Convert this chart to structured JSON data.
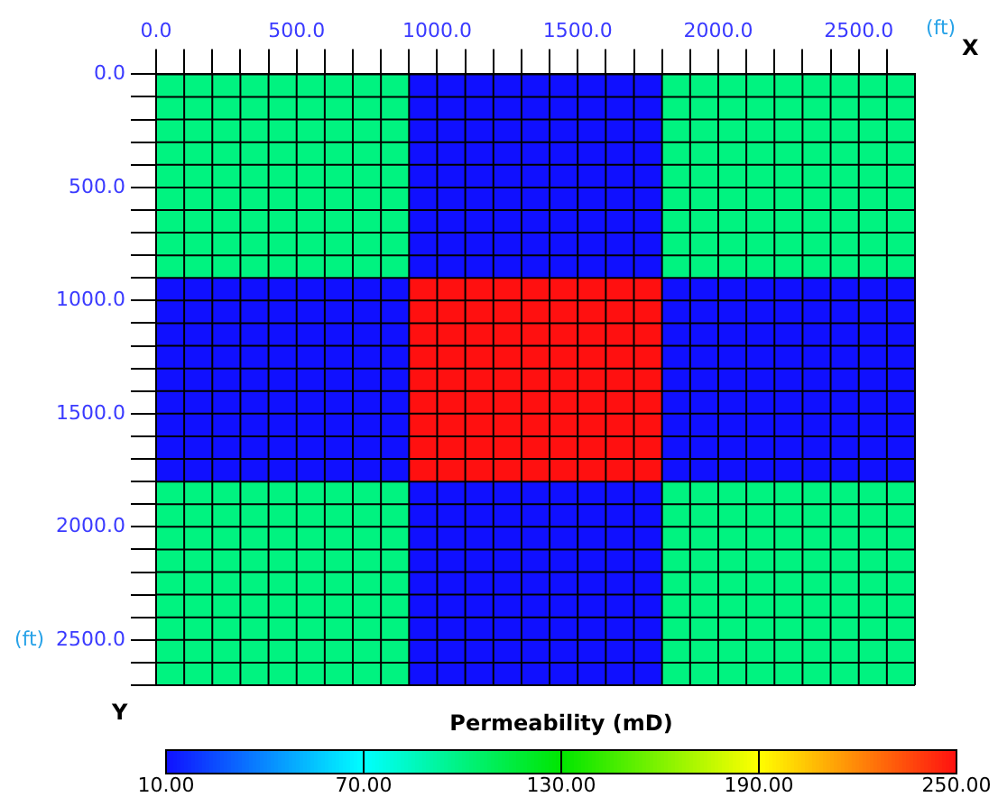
{
  "chart_data": {
    "type": "heatmap",
    "grid": true,
    "xlabel": "(ft)",
    "clabel": "Permeability (mD)",
    "annotations": [
      "X",
      "Y",
      "(ft)"
    ],
    "x": [
      50,
      150,
      250,
      350,
      450,
      550,
      650,
      750,
      850,
      950,
      1050,
      1150,
      1250,
      1350,
      1450,
      1550,
      1650,
      1750,
      1850,
      1950,
      2050,
      2150,
      2250,
      2350,
      2450,
      2550,
      2650
    ],
    "y": [
      50,
      150,
      250,
      350,
      450,
      550,
      650,
      750,
      850,
      950,
      1050,
      1150,
      1250,
      1350,
      1450,
      1550,
      1650,
      1750,
      1850,
      1950,
      2050,
      2150,
      2250,
      2350,
      2450,
      2550,
      2650
    ],
    "xlim": [
      0,
      2700
    ],
    "ylim": [
      2700,
      0
    ],
    "xticks": [
      {
        "value": 0,
        "label": "0.0"
      },
      {
        "value": 100,
        "label": null
      },
      {
        "value": 200,
        "label": null
      },
      {
        "value": 300,
        "label": null
      },
      {
        "value": 400,
        "label": null
      },
      {
        "value": 500,
        "label": "500.0"
      },
      {
        "value": 600,
        "label": null
      },
      {
        "value": 700,
        "label": null
      },
      {
        "value": 800,
        "label": null
      },
      {
        "value": 900,
        "label": null
      },
      {
        "value": 1000,
        "label": "1000.0"
      },
      {
        "value": 1100,
        "label": null
      },
      {
        "value": 1200,
        "label": null
      },
      {
        "value": 1300,
        "label": null
      },
      {
        "value": 1400,
        "label": null
      },
      {
        "value": 1500,
        "label": "1500.0"
      },
      {
        "value": 1600,
        "label": null
      },
      {
        "value": 1700,
        "label": null
      },
      {
        "value": 1800,
        "label": null
      },
      {
        "value": 1900,
        "label": null
      },
      {
        "value": 2000,
        "label": "2000.0"
      },
      {
        "value": 2100,
        "label": null
      },
      {
        "value": 2200,
        "label": null
      },
      {
        "value": 2300,
        "label": null
      },
      {
        "value": 2400,
        "label": null
      },
      {
        "value": 2500,
        "label": "2500.0"
      },
      {
        "value": 2600,
        "label": null
      }
    ],
    "yticks": [
      {
        "value": 0,
        "label": "0.0"
      },
      {
        "value": 100,
        "label": null
      },
      {
        "value": 200,
        "label": null
      },
      {
        "value": 300,
        "label": null
      },
      {
        "value": 400,
        "label": null
      },
      {
        "value": 500,
        "label": "500.0"
      },
      {
        "value": 600,
        "label": null
      },
      {
        "value": 700,
        "label": null
      },
      {
        "value": 800,
        "label": null
      },
      {
        "value": 900,
        "label": null
      },
      {
        "value": 1000,
        "label": "1000.0"
      },
      {
        "value": 1100,
        "label": null
      },
      {
        "value": 1200,
        "label": null
      },
      {
        "value": 1300,
        "label": null
      },
      {
        "value": 1400,
        "label": null
      },
      {
        "value": 1500,
        "label": "1500.0"
      },
      {
        "value": 1600,
        "label": null
      },
      {
        "value": 1700,
        "label": null
      },
      {
        "value": 1800,
        "label": null
      },
      {
        "value": 1900,
        "label": null
      },
      {
        "value": 2000,
        "label": "2000.0"
      },
      {
        "value": 2100,
        "label": null
      },
      {
        "value": 2200,
        "label": null
      },
      {
        "value": 2300,
        "label": null
      },
      {
        "value": 2400,
        "label": null
      },
      {
        "value": 2500,
        "label": "2500.0"
      },
      {
        "value": 2600,
        "label": null
      },
      {
        "value": 2700,
        "label": null
      }
    ],
    "clim": [
      10,
      250
    ],
    "cticks": [
      {
        "value": 10,
        "label": "10.00"
      },
      {
        "value": 70,
        "label": "70.00"
      },
      {
        "value": 130,
        "label": "130.00"
      },
      {
        "value": 190,
        "label": "190.00"
      },
      {
        "value": 250,
        "label": "250.00"
      }
    ],
    "cells": [
      [
        100,
        100,
        100,
        100,
        100,
        100,
        100,
        100,
        100,
        10,
        10,
        10,
        10,
        10,
        10,
        10,
        10,
        10,
        100,
        100,
        100,
        100,
        100,
        100,
        100,
        100,
        100
      ],
      [
        100,
        100,
        100,
        100,
        100,
        100,
        100,
        100,
        100,
        10,
        10,
        10,
        10,
        10,
        10,
        10,
        10,
        10,
        100,
        100,
        100,
        100,
        100,
        100,
        100,
        100,
        100
      ],
      [
        100,
        100,
        100,
        100,
        100,
        100,
        100,
        100,
        100,
        10,
        10,
        10,
        10,
        10,
        10,
        10,
        10,
        10,
        100,
        100,
        100,
        100,
        100,
        100,
        100,
        100,
        100
      ],
      [
        100,
        100,
        100,
        100,
        100,
        100,
        100,
        100,
        100,
        10,
        10,
        10,
        10,
        10,
        10,
        10,
        10,
        10,
        100,
        100,
        100,
        100,
        100,
        100,
        100,
        100,
        100
      ],
      [
        100,
        100,
        100,
        100,
        100,
        100,
        100,
        100,
        100,
        10,
        10,
        10,
        10,
        10,
        10,
        10,
        10,
        10,
        100,
        100,
        100,
        100,
        100,
        100,
        100,
        100,
        100
      ],
      [
        100,
        100,
        100,
        100,
        100,
        100,
        100,
        100,
        100,
        10,
        10,
        10,
        10,
        10,
        10,
        10,
        10,
        10,
        100,
        100,
        100,
        100,
        100,
        100,
        100,
        100,
        100
      ],
      [
        100,
        100,
        100,
        100,
        100,
        100,
        100,
        100,
        100,
        10,
        10,
        10,
        10,
        10,
        10,
        10,
        10,
        10,
        100,
        100,
        100,
        100,
        100,
        100,
        100,
        100,
        100
      ],
      [
        100,
        100,
        100,
        100,
        100,
        100,
        100,
        100,
        100,
        10,
        10,
        10,
        10,
        10,
        10,
        10,
        10,
        10,
        100,
        100,
        100,
        100,
        100,
        100,
        100,
        100,
        100
      ],
      [
        100,
        100,
        100,
        100,
        100,
        100,
        100,
        100,
        100,
        10,
        10,
        10,
        10,
        10,
        10,
        10,
        10,
        10,
        100,
        100,
        100,
        100,
        100,
        100,
        100,
        100,
        100
      ],
      [
        10,
        10,
        10,
        10,
        10,
        10,
        10,
        10,
        10,
        250,
        250,
        250,
        250,
        250,
        250,
        250,
        250,
        250,
        10,
        10,
        10,
        10,
        10,
        10,
        10,
        10,
        10
      ],
      [
        10,
        10,
        10,
        10,
        10,
        10,
        10,
        10,
        10,
        250,
        250,
        250,
        250,
        250,
        250,
        250,
        250,
        250,
        10,
        10,
        10,
        10,
        10,
        10,
        10,
        10,
        10
      ],
      [
        10,
        10,
        10,
        10,
        10,
        10,
        10,
        10,
        10,
        250,
        250,
        250,
        250,
        250,
        250,
        250,
        250,
        250,
        10,
        10,
        10,
        10,
        10,
        10,
        10,
        10,
        10
      ],
      [
        10,
        10,
        10,
        10,
        10,
        10,
        10,
        10,
        10,
        250,
        250,
        250,
        250,
        250,
        250,
        250,
        250,
        250,
        10,
        10,
        10,
        10,
        10,
        10,
        10,
        10,
        10
      ],
      [
        10,
        10,
        10,
        10,
        10,
        10,
        10,
        10,
        10,
        250,
        250,
        250,
        250,
        250,
        250,
        250,
        250,
        250,
        10,
        10,
        10,
        10,
        10,
        10,
        10,
        10,
        10
      ],
      [
        10,
        10,
        10,
        10,
        10,
        10,
        10,
        10,
        10,
        250,
        250,
        250,
        250,
        250,
        250,
        250,
        250,
        250,
        10,
        10,
        10,
        10,
        10,
        10,
        10,
        10,
        10
      ],
      [
        10,
        10,
        10,
        10,
        10,
        10,
        10,
        10,
        10,
        250,
        250,
        250,
        250,
        250,
        250,
        250,
        250,
        250,
        10,
        10,
        10,
        10,
        10,
        10,
        10,
        10,
        10
      ],
      [
        10,
        10,
        10,
        10,
        10,
        10,
        10,
        10,
        10,
        250,
        250,
        250,
        250,
        250,
        250,
        250,
        250,
        250,
        10,
        10,
        10,
        10,
        10,
        10,
        10,
        10,
        10
      ],
      [
        10,
        10,
        10,
        10,
        10,
        10,
        10,
        10,
        10,
        250,
        250,
        250,
        250,
        250,
        250,
        250,
        250,
        250,
        10,
        10,
        10,
        10,
        10,
        10,
        10,
        10,
        10
      ],
      [
        100,
        100,
        100,
        100,
        100,
        100,
        100,
        100,
        100,
        10,
        10,
        10,
        10,
        10,
        10,
        10,
        10,
        10,
        100,
        100,
        100,
        100,
        100,
        100,
        100,
        100,
        100
      ],
      [
        100,
        100,
        100,
        100,
        100,
        100,
        100,
        100,
        100,
        10,
        10,
        10,
        10,
        10,
        10,
        10,
        10,
        10,
        100,
        100,
        100,
        100,
        100,
        100,
        100,
        100,
        100
      ],
      [
        100,
        100,
        100,
        100,
        100,
        100,
        100,
        100,
        100,
        10,
        10,
        10,
        10,
        10,
        10,
        10,
        10,
        10,
        100,
        100,
        100,
        100,
        100,
        100,
        100,
        100,
        100
      ],
      [
        100,
        100,
        100,
        100,
        100,
        100,
        100,
        100,
        100,
        10,
        10,
        10,
        10,
        10,
        10,
        10,
        10,
        10,
        100,
        100,
        100,
        100,
        100,
        100,
        100,
        100,
        100
      ],
      [
        100,
        100,
        100,
        100,
        100,
        100,
        100,
        100,
        100,
        10,
        10,
        10,
        10,
        10,
        10,
        10,
        10,
        10,
        100,
        100,
        100,
        100,
        100,
        100,
        100,
        100,
        100
      ],
      [
        100,
        100,
        100,
        100,
        100,
        100,
        100,
        100,
        100,
        10,
        10,
        10,
        10,
        10,
        10,
        10,
        10,
        10,
        100,
        100,
        100,
        100,
        100,
        100,
        100,
        100,
        100
      ],
      [
        100,
        100,
        100,
        100,
        100,
        100,
        100,
        100,
        100,
        10,
        10,
        10,
        10,
        10,
        10,
        10,
        10,
        10,
        100,
        100,
        100,
        100,
        100,
        100,
        100,
        100,
        100
      ],
      [
        100,
        100,
        100,
        100,
        100,
        100,
        100,
        100,
        100,
        10,
        10,
        10,
        10,
        10,
        10,
        10,
        10,
        10,
        100,
        100,
        100,
        100,
        100,
        100,
        100,
        100,
        100
      ],
      [
        100,
        100,
        100,
        100,
        100,
        100,
        100,
        100,
        100,
        10,
        10,
        10,
        10,
        10,
        10,
        10,
        10,
        10,
        100,
        100,
        100,
        100,
        100,
        100,
        100,
        100,
        100
      ]
    ]
  }
}
